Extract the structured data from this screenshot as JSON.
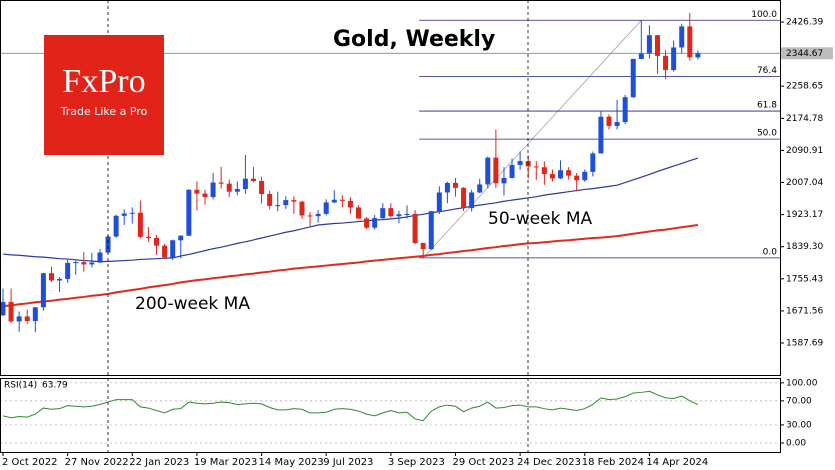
{
  "logo": {
    "brand": "FxPro",
    "tagline": "Trade Like a Pro"
  },
  "chart_data": {
    "type": "candlestick",
    "title": "Gold, Weekly",
    "categories": [
      "2 Oct 2022",
      null,
      null,
      null,
      null,
      null,
      null,
      null,
      "27 Nov 2022",
      null,
      null,
      null,
      null,
      null,
      null,
      null,
      "22 Jan 2023",
      null,
      null,
      null,
      null,
      null,
      null,
      null,
      "19 Mar 2023",
      null,
      null,
      null,
      null,
      null,
      null,
      null,
      "14 May 2023",
      null,
      null,
      null,
      null,
      null,
      null,
      null,
      "9 Jul 2023",
      null,
      null,
      null,
      null,
      null,
      null,
      null,
      "3 Sep 2023",
      null,
      null,
      null,
      null,
      null,
      null,
      null,
      "29 Oct 2023",
      null,
      null,
      null,
      null,
      null,
      null,
      null,
      "24 Dec 2023",
      null,
      null,
      null,
      null,
      null,
      null,
      null,
      "18 Feb 2024",
      null,
      null,
      null,
      null,
      null,
      null,
      null,
      "14 Apr 2024",
      null,
      null,
      null,
      null,
      null,
      null
    ],
    "open": [
      1660,
      1695,
      1644,
      1657,
      1645,
      1681,
      1770,
      1751,
      1755,
      1797,
      1799,
      1793,
      1798,
      1824,
      1866,
      1920,
      1926,
      1928,
      1865,
      1862,
      1842,
      1811,
      1856,
      1868,
      1988,
      1978,
      1969,
      2007,
      2004,
      1983,
      1990,
      2017,
      2011,
      1977,
      1946,
      1948,
      1961,
      1957,
      1921,
      1919,
      1925,
      1955,
      1962,
      1959,
      1942,
      1913,
      1889,
      1914,
      1940,
      1919,
      1924,
      1925,
      1849,
      1833,
      1932,
      1981,
      2006,
      1993,
      1940,
      1981,
      2002,
      2072,
      2005,
      2019,
      2053,
      2063,
      2049,
      2047,
      2029,
      2018,
      2039,
      2025,
      2013,
      2035,
      2083,
      2179,
      2155,
      2165,
      2230,
      2330,
      2344,
      2392,
      2338,
      2301,
      2360,
      2415,
      2334
    ],
    "high": [
      1730,
      1730,
      1670,
      1675,
      1682,
      1771,
      1787,
      1760,
      1805,
      1803,
      1825,
      1823,
      1833,
      1870,
      1923,
      1937,
      1942,
      1960,
      1890,
      1870,
      1847,
      1858,
      1869,
      1990,
      2010,
      1988,
      2032,
      2048,
      2015,
      2010,
      2079,
      2048,
      2022,
      1985,
      1983,
      1971,
      1971,
      1959,
      1930,
      1935,
      1963,
      1987,
      1974,
      1969,
      1948,
      1917,
      1922,
      1953,
      1953,
      1933,
      1947,
      1935,
      1850,
      1933,
      1997,
      2009,
      2019,
      1995,
      1988,
      2017,
      2075,
      2146,
      2047,
      2070,
      2088,
      2078,
      2063,
      2062,
      2041,
      2065,
      2047,
      2032,
      2041,
      2088,
      2195,
      2185,
      2223,
      2236,
      2331,
      2431,
      2418,
      2393,
      2353,
      2378,
      2422,
      2450,
      2352
    ],
    "low": [
      1658,
      1640,
      1617,
      1638,
      1616,
      1672,
      1747,
      1721,
      1745,
      1766,
      1774,
      1785,
      1797,
      1822,
      1862,
      1896,
      1900,
      1861,
      1852,
      1818,
      1809,
      1804,
      1809,
      1867,
      1934,
      1949,
      1963,
      1991,
      1969,
      1974,
      1977,
      2008,
      1952,
      1937,
      1932,
      1938,
      1925,
      1911,
      1893,
      1902,
      1921,
      1953,
      1942,
      1925,
      1911,
      1885,
      1884,
      1912,
      1915,
      1901,
      1913,
      1846,
      1810,
      1831,
      1925,
      1953,
      1970,
      1932,
      1931,
      1979,
      1992,
      1993,
      1973,
      2017,
      2040,
      2017,
      2013,
      2001,
      2010,
      2016,
      2015,
      1984,
      2009,
      2023,
      2083,
      2146,
      2146,
      2160,
      2228,
      2329,
      2331,
      2291,
      2277,
      2297,
      2344,
      2326,
      2329
    ],
    "close": [
      1695,
      1644,
      1657,
      1645,
      1681,
      1770,
      1751,
      1755,
      1797,
      1799,
      1793,
      1798,
      1824,
      1866,
      1920,
      1926,
      1928,
      1865,
      1862,
      1842,
      1811,
      1856,
      1868,
      1988,
      1978,
      1969,
      2007,
      2004,
      1983,
      1990,
      2017,
      2011,
      1977,
      1946,
      1948,
      1961,
      1957,
      1921,
      1919,
      1925,
      1955,
      1962,
      1959,
      1942,
      1913,
      1889,
      1914,
      1940,
      1919,
      1924,
      1925,
      1849,
      1833,
      1932,
      1981,
      2006,
      1993,
      1940,
      1981,
      2002,
      2072,
      2005,
      2019,
      2053,
      2063,
      2049,
      2047,
      2029,
      2018,
      2039,
      2025,
      2013,
      2035,
      2083,
      2179,
      2155,
      2165,
      2230,
      2330,
      2344,
      2392,
      2338,
      2301,
      2360,
      2415,
      2334,
      2344.67
    ],
    "up_color": "#1f4fd8",
    "down_color": "#e0251b",
    "current_price_color": "#3aa6a6",
    "ylim": [
      1504,
      2484
    ],
    "yticks": [
      2426.39,
      2258.65,
      2174.78,
      2090.91,
      2007.04,
      1923.17,
      {
        "value": 1839.3,
        "label": "1839.30"
      },
      1755.43,
      1671.56,
      1587.69
    ],
    "moving_averages": [
      {
        "name": "50-week MA",
        "color": "#2b3a9c",
        "values": [
          1820,
          1818,
          1817,
          1815,
          1813,
          1812,
          1810,
          1808,
          1807,
          1805,
          1803,
          1802,
          1800,
          1801,
          1802,
          1803,
          1804,
          1806,
          1807,
          1808,
          1809,
          1810,
          1815,
          1819,
          1824,
          1829,
          1834,
          1838,
          1843,
          1848,
          1852,
          1857,
          1862,
          1867,
          1872,
          1877,
          1881,
          1886,
          1891,
          1896,
          1898,
          1900,
          1901,
          1903,
          1905,
          1907,
          1909,
          1910,
          1912,
          1914,
          1917,
          1921,
          1924,
          1928,
          1931,
          1934,
          1938,
          1941,
          1945,
          1948,
          1951,
          1954,
          1958,
          1961,
          1964,
          1967,
          1970,
          1974,
          1977,
          1980,
          1983,
          1986,
          1989,
          1991,
          1994,
          1997,
          2000,
          2007,
          2014,
          2021,
          2028,
          2036,
          2043,
          2050,
          2057,
          2064,
          2071
        ]
      },
      {
        "name": "200-week MA",
        "color": "#e02a1c",
        "values": [
          1684,
          1686,
          1689,
          1691,
          1694,
          1696,
          1698,
          1701,
          1703,
          1706,
          1708,
          1711,
          1713,
          1716,
          1720,
          1723,
          1726,
          1729,
          1733,
          1736,
          1739,
          1742,
          1746,
          1749,
          1752,
          1754,
          1757,
          1759,
          1762,
          1764,
          1767,
          1769,
          1772,
          1774,
          1777,
          1779,
          1782,
          1784,
          1786,
          1788,
          1790,
          1792,
          1794,
          1796,
          1798,
          1801,
          1803,
          1805,
          1807,
          1809,
          1811,
          1813,
          1815,
          1818,
          1820,
          1823,
          1825,
          1828,
          1830,
          1833,
          1836,
          1838,
          1841,
          1843,
          1846,
          1848,
          1849,
          1851,
          1853,
          1855,
          1856,
          1858,
          1860,
          1862,
          1863,
          1865,
          1867,
          1870,
          1873,
          1876,
          1879,
          1882,
          1884,
          1887,
          1890,
          1893,
          1896
        ]
      }
    ],
    "fibonacci": {
      "low": 1810,
      "high": 2431,
      "color": "#1a237e",
      "levels": [
        {
          "value": 100,
          "label": "100.0"
        },
        {
          "value": 76.4,
          "label": "76.4"
        },
        {
          "value": 61.8,
          "label": "61.8"
        },
        {
          "value": 50,
          "label": "50.0"
        },
        {
          "value": 0,
          "label": "0.0"
        }
      ]
    },
    "rsi": {
      "label": "RSI(14)",
      "color": "#2e8b2e",
      "values": [
        45,
        42,
        44,
        43,
        48,
        58,
        56,
        57,
        62,
        61,
        60,
        61,
        64,
        68,
        72,
        72,
        72,
        60,
        58,
        54,
        50,
        56,
        57,
        68,
        66,
        65,
        66,
        68,
        67,
        64,
        65,
        66,
        65,
        59,
        55,
        55,
        57,
        56,
        50,
        50,
        51,
        56,
        57,
        56,
        53,
        48,
        45,
        50,
        54,
        50,
        51,
        40,
        37,
        53,
        60,
        63,
        61,
        52,
        58,
        61,
        68,
        58,
        59,
        62,
        63,
        60,
        60,
        57,
        55,
        58,
        56,
        54,
        57,
        64,
        75,
        72,
        73,
        77,
        83,
        84,
        86,
        80,
        75,
        74,
        78,
        70,
        63.79
      ],
      "ylim": [
        -15,
        108
      ],
      "yticks": [
        {
          "value": 100,
          "label": "100.00"
        },
        {
          "value": 70,
          "label": "70.00"
        },
        {
          "value": 30,
          "label": "30.00"
        },
        {
          "value": 0,
          "label": "0.00"
        }
      ]
    }
  }
}
